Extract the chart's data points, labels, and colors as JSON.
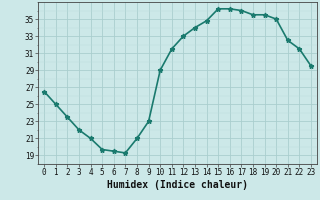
{
  "x": [
    0,
    1,
    2,
    3,
    4,
    5,
    6,
    7,
    8,
    9,
    10,
    11,
    12,
    13,
    14,
    15,
    16,
    17,
    18,
    19,
    20,
    21,
    22,
    23
  ],
  "y": [
    26.5,
    25.0,
    23.5,
    22.0,
    21.0,
    19.7,
    19.5,
    19.3,
    21.0,
    23.0,
    29.0,
    31.5,
    33.0,
    34.0,
    34.8,
    36.2,
    36.2,
    36.0,
    35.5,
    35.5,
    35.0,
    32.5,
    31.5,
    29.5
  ],
  "line_color": "#1a7a6e",
  "marker": "*",
  "marker_color": "#1a7a6e",
  "bg_color": "#cce8e8",
  "grid_major_color": "#aacece",
  "grid_minor_color": "#bbdddd",
  "xlabel": "Humidex (Indice chaleur)",
  "ylim": [
    18,
    37
  ],
  "xlim": [
    -0.5,
    23.5
  ],
  "yticks": [
    19,
    21,
    23,
    25,
    27,
    29,
    31,
    33,
    35
  ],
  "xticks": [
    0,
    1,
    2,
    3,
    4,
    5,
    6,
    7,
    8,
    9,
    10,
    11,
    12,
    13,
    14,
    15,
    16,
    17,
    18,
    19,
    20,
    21,
    22,
    23
  ],
  "tick_fontsize": 5.5,
  "xlabel_fontsize": 7,
  "line_width": 1.2,
  "marker_size": 3.5
}
